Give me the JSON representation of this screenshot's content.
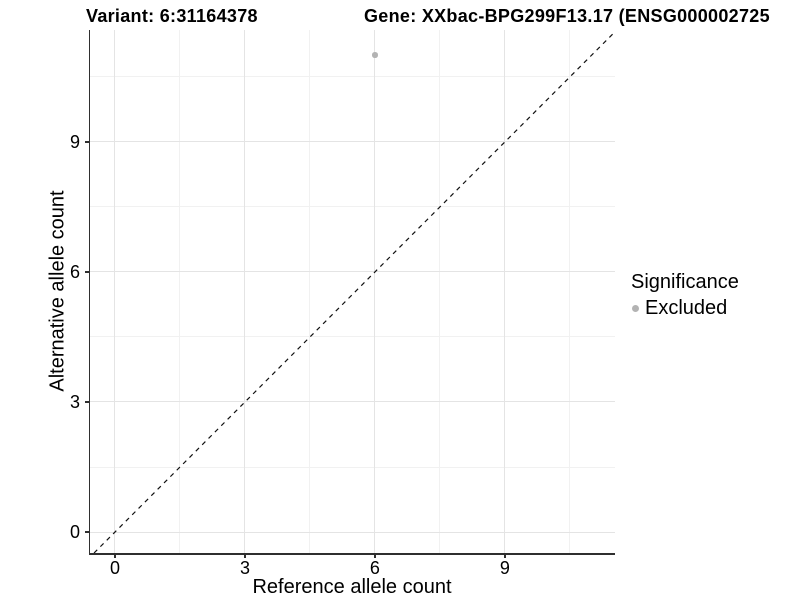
{
  "titles": {
    "left": "Variant: 6:31164378",
    "right": "Gene: XXbac-BPG299F13.17 (ENSG000002725"
  },
  "chart_data": {
    "type": "scatter",
    "xlabel": "Reference allele count",
    "ylabel": "Alternative allele count",
    "xlim": [
      -0.577,
      11.541
    ],
    "ylim": [
      -0.484,
      11.582
    ],
    "x_major_ticks": [
      0,
      3,
      6,
      9
    ],
    "y_major_ticks": [
      0,
      3,
      6,
      9
    ],
    "x_minor_ticks": [
      1.5,
      4.5,
      7.5,
      10.5
    ],
    "y_minor_ticks": [
      1.5,
      4.5,
      7.5,
      10.5
    ],
    "grid": "on",
    "series": [
      {
        "name": "Excluded",
        "points": [
          {
            "x": 6,
            "y": 11
          }
        ],
        "color": "#b3b3b3",
        "point_diameter": 5.5
      }
    ],
    "identity_line": {
      "style": "dashed",
      "color": "#111111",
      "width": 1.2,
      "dash": "4.5 4.5",
      "equation": "y = x"
    },
    "legend": {
      "title": "Significance",
      "position": "right",
      "items": [
        {
          "label": "Excluded",
          "color": "#b3b3b3"
        }
      ]
    }
  },
  "style_colors": {
    "grid_major": "#e4e4e4",
    "grid_minor": "#f1f1f1",
    "axis_line": "#2f2f2f",
    "background": "#ffffff"
  }
}
